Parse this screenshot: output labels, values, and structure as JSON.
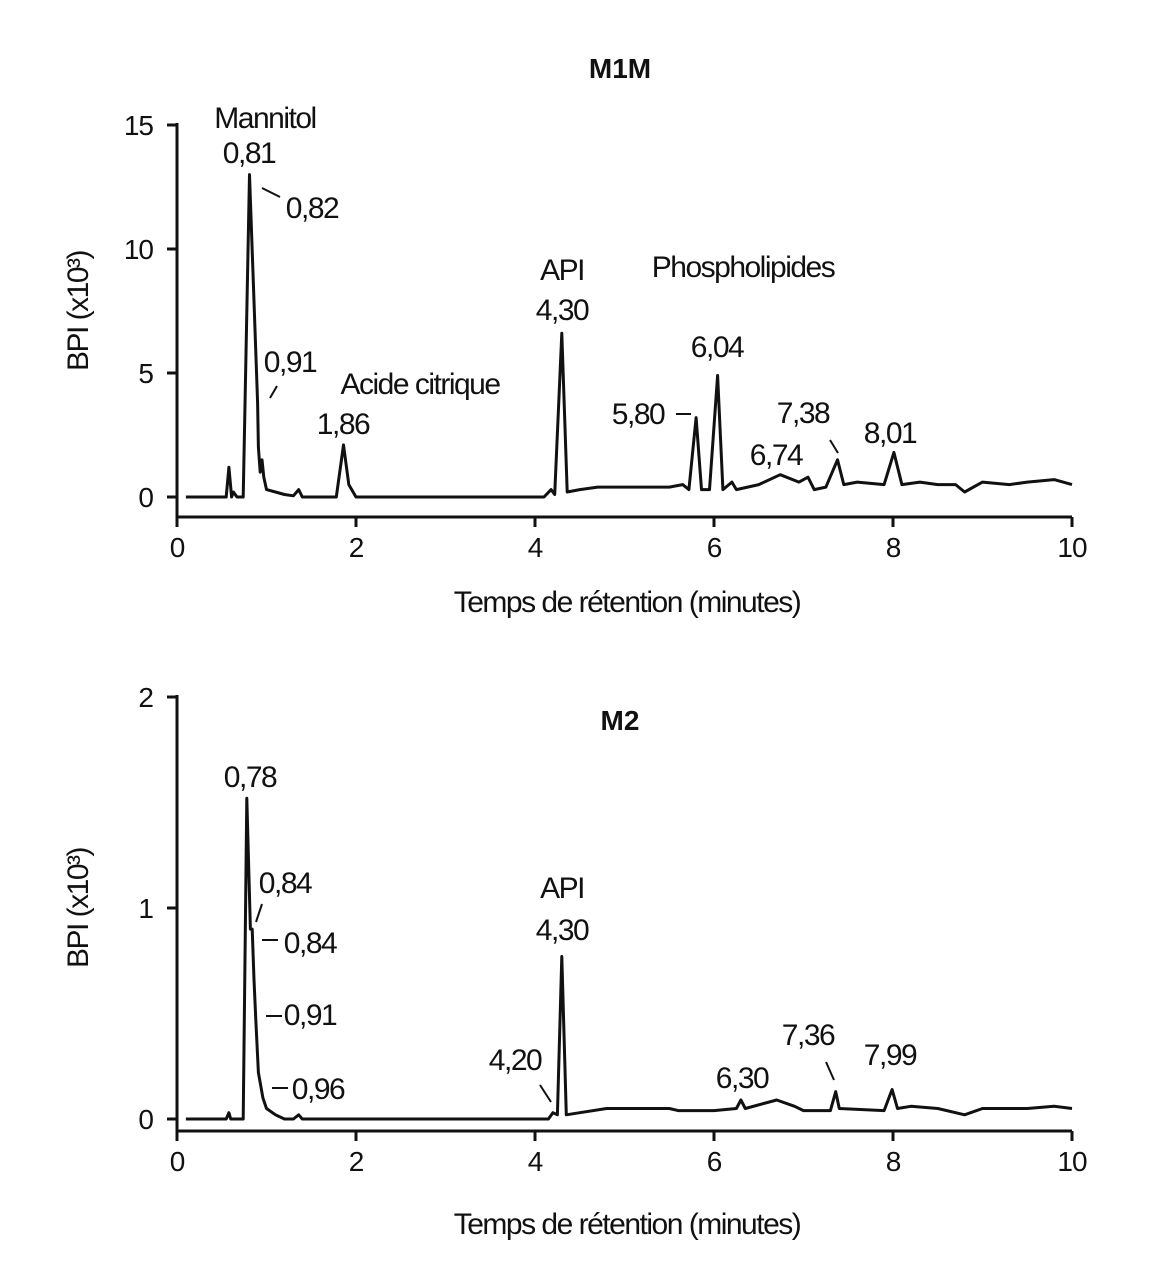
{
  "chart_data": [
    {
      "type": "line",
      "title": "M1M",
      "xlabel": "Temps de rétention (minutes)",
      "ylabel": "BPI (x10³)",
      "xlim": [
        0,
        10
      ],
      "ylim": [
        0,
        15
      ],
      "xticks": [
        "0",
        "2",
        "4",
        "6",
        "8",
        "10"
      ],
      "yticks": [
        "0",
        "5",
        "10",
        "15"
      ],
      "grid": false,
      "series": [
        {
          "name": "M1M",
          "x": [
            0.1,
            0.55,
            0.58,
            0.61,
            0.63,
            0.67,
            0.74,
            0.81,
            0.9,
            0.91,
            0.93,
            0.95,
            0.97,
            1.0,
            1.1,
            1.2,
            1.3,
            1.36,
            1.4,
            1.78,
            1.86,
            1.92,
            2.0,
            4.1,
            4.18,
            4.22,
            4.3,
            4.36,
            4.5,
            4.7,
            5.0,
            5.5,
            5.65,
            5.72,
            5.8,
            5.86,
            5.95,
            6.04,
            6.1,
            6.2,
            6.25,
            6.5,
            6.74,
            6.95,
            7.05,
            7.12,
            7.25,
            7.38,
            7.45,
            7.6,
            7.9,
            8.01,
            8.1,
            8.3,
            8.5,
            8.7,
            8.8,
            9.0,
            9.3,
            9.5,
            9.8,
            10.0
          ],
          "y": [
            0,
            0,
            1.2,
            0,
            0.2,
            0,
            0,
            13,
            3.8,
            2.0,
            1.0,
            1.5,
            0.8,
            0.3,
            0.2,
            0.1,
            0.05,
            0.3,
            0,
            0,
            2.1,
            0.5,
            0,
            0,
            0.3,
            0.1,
            6.6,
            0.2,
            0.3,
            0.4,
            0.4,
            0.4,
            0.5,
            0.3,
            3.2,
            0.3,
            0.3,
            4.9,
            0.3,
            0.6,
            0.3,
            0.5,
            0.9,
            0.6,
            0.8,
            0.3,
            0.4,
            1.5,
            0.5,
            0.6,
            0.5,
            1.8,
            0.5,
            0.6,
            0.5,
            0.5,
            0.2,
            0.6,
            0.5,
            0.6,
            0.7,
            0.5
          ]
        }
      ],
      "annotations": [
        "Mannitol",
        "0,81",
        "0,82",
        "0,91",
        "Acide citrique",
        "1,86",
        "API",
        "4,30",
        "Phospholipides",
        "6,04",
        "5,80",
        "6,74",
        "7,38",
        "8,01"
      ]
    },
    {
      "type": "line",
      "title": "M2",
      "xlabel": "Temps de rétention (minutes)",
      "ylabel": "BPI (x10³)",
      "xlim": [
        0,
        10
      ],
      "ylim": [
        0,
        2
      ],
      "xticks": [
        "0",
        "2",
        "4",
        "6",
        "8",
        "10"
      ],
      "yticks": [
        "0",
        "1",
        "2"
      ],
      "grid": false,
      "series": [
        {
          "name": "M2",
          "x": [
            0.1,
            0.55,
            0.58,
            0.6,
            0.74,
            0.78,
            0.82,
            0.84,
            0.86,
            0.88,
            0.91,
            0.96,
            1.0,
            1.1,
            1.2,
            1.3,
            1.36,
            1.4,
            4.15,
            4.2,
            4.25,
            4.3,
            4.35,
            4.5,
            4.8,
            5.0,
            5.5,
            5.6,
            6.0,
            6.25,
            6.3,
            6.35,
            6.7,
            6.9,
            7.0,
            7.3,
            7.36,
            7.4,
            7.9,
            7.99,
            8.05,
            8.2,
            8.5,
            8.8,
            9.0,
            9.5,
            9.8,
            10.0
          ],
          "y": [
            0,
            0,
            0.03,
            0,
            0,
            1.52,
            0.9,
            0.9,
            0.66,
            0.47,
            0.22,
            0.1,
            0.05,
            0.02,
            0,
            0,
            0.02,
            0,
            0,
            0.03,
            0.02,
            0.77,
            0.02,
            0.03,
            0.05,
            0.05,
            0.05,
            0.04,
            0.04,
            0.05,
            0.09,
            0.05,
            0.09,
            0.06,
            0.04,
            0.04,
            0.13,
            0.05,
            0.04,
            0.14,
            0.05,
            0.06,
            0.05,
            0.02,
            0.05,
            0.05,
            0.06,
            0.05
          ]
        }
      ],
      "annotations": [
        "0,78",
        "0,84",
        "0,84",
        "0,91",
        "0,96",
        "4,20",
        "API",
        "4,30",
        "6,30",
        "7,36",
        "7,99"
      ]
    }
  ]
}
